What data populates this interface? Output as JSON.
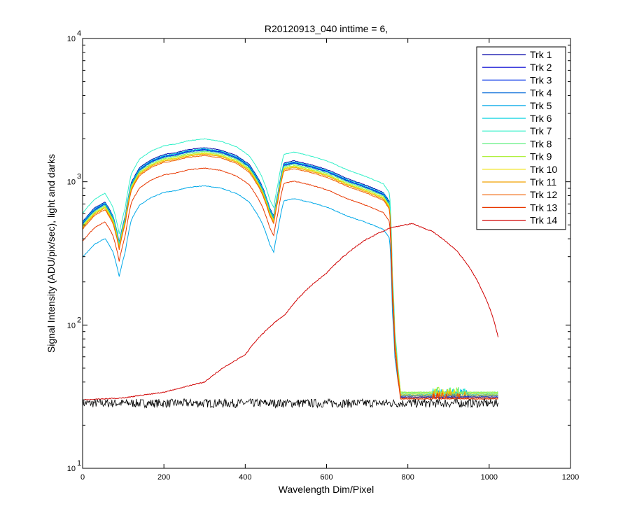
{
  "chart_data": {
    "type": "line",
    "title": "R20120913_040 inttime = 6,",
    "xlabel": "Wavelength Dim/Pixel",
    "ylabel": "Signal Intensity (ADU/pix/sec), light and darks",
    "xlim": [
      0,
      1200
    ],
    "ylim": [
      10,
      10000
    ],
    "yscale": "log",
    "xticks": [
      0,
      200,
      400,
      600,
      800,
      1000,
      1200
    ],
    "yticks": [
      {
        "value": 10,
        "base": "10",
        "exp": "1"
      },
      {
        "value": 100,
        "base": "10",
        "exp": "2"
      },
      {
        "value": 1000,
        "base": "10",
        "exp": "3"
      },
      {
        "value": 10000,
        "base": "10",
        "exp": "4"
      }
    ],
    "grid": false,
    "legend_position": "top-right",
    "light_profile": {
      "x": [
        0,
        30,
        55,
        75,
        90,
        105,
        120,
        140,
        170,
        200,
        230,
        260,
        300,
        340,
        380,
        410,
        440,
        460,
        470,
        480,
        495,
        520,
        560,
        600,
        650,
        700,
        740,
        755,
        762,
        768,
        775,
        782,
        790,
        800,
        1023
      ],
      "shape": [
        0.3,
        0.38,
        0.42,
        0.33,
        0.21,
        0.33,
        0.58,
        0.74,
        0.85,
        0.92,
        0.95,
        1.0,
        1.03,
        0.99,
        0.9,
        0.78,
        0.56,
        0.38,
        0.33,
        0.48,
        0.8,
        0.83,
        0.78,
        0.72,
        0.62,
        0.55,
        0.49,
        0.42,
        0.1,
        0.03,
        0.01,
        0.0,
        0.0,
        0.0,
        0.0
      ]
    },
    "series": [
      {
        "name": "Trk 1",
        "color": "#0000a8",
        "peak": 1650,
        "dark": 31
      },
      {
        "name": "Trk 2",
        "color": "#0000d0",
        "peak": 1600,
        "dark": 31
      },
      {
        "name": "Trk 3",
        "color": "#0030e8",
        "peak": 1600,
        "dark": 31.5
      },
      {
        "name": "Trk 4",
        "color": "#0068d8",
        "peak": 1580,
        "dark": 32
      },
      {
        "name": "Trk 5",
        "color": "#00a8e8",
        "peak": 880,
        "dark": 32.5
      },
      {
        "name": "Trk 6",
        "color": "#00d0e0",
        "peak": 1620,
        "dark": 33
      },
      {
        "name": "Trk 7",
        "color": "#30f0c8",
        "peak": 1900,
        "dark": 33.5
      },
      {
        "name": "Trk 8",
        "color": "#60f080",
        "peak": 1550,
        "dark": 34
      },
      {
        "name": "Trk 9",
        "color": "#b0f040",
        "peak": 1520,
        "dark": 34
      },
      {
        "name": "Trk 10",
        "color": "#f0e000",
        "peak": 1500,
        "dark": 33
      },
      {
        "name": "Trk 11",
        "color": "#f0a000",
        "peak": 1480,
        "dark": 32
      },
      {
        "name": "Trk 12",
        "color": "#f06000",
        "peak": 1450,
        "dark": 31
      },
      {
        "name": "Trk 13",
        "color": "#e83800",
        "peak": 1180,
        "dark": 30.5
      },
      {
        "name": "Trk 14",
        "color": "#d00000",
        "kind": "broad",
        "x": [
          0,
          100,
          200,
          300,
          400,
          500,
          600,
          700,
          760,
          810,
          860,
          920,
          980,
          1023
        ],
        "y": [
          30,
          31,
          34,
          40,
          62,
          120,
          230,
          400,
          480,
          510,
          450,
          330,
          180,
          80
        ]
      }
    ],
    "darks": {
      "color": "#000000",
      "low": 26.5,
      "high": 30.5,
      "x_end": 1023
    }
  }
}
